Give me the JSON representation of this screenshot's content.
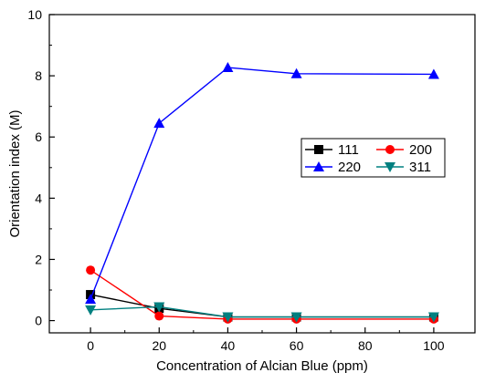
{
  "chart_data": {
    "type": "line",
    "title": "",
    "xlabel": "Concentration of Alcian Blue (ppm)",
    "ylabel": "Orientation index (M)",
    "xlim": [
      -12,
      112
    ],
    "ylim": [
      -0.4,
      10
    ],
    "xticks": [
      0,
      20,
      40,
      60,
      80,
      100
    ],
    "yticks": [
      0,
      2,
      4,
      6,
      8,
      10
    ],
    "grid": false,
    "legend_position": "center-right",
    "x": [
      0,
      20,
      40,
      60,
      100
    ],
    "series": [
      {
        "name": "111",
        "color": "#000000",
        "marker": "square",
        "values": [
          0.85,
          0.4,
          0.12,
          0.12,
          0.12
        ]
      },
      {
        "name": "200",
        "color": "#ff0000",
        "marker": "circle",
        "values": [
          1.65,
          0.15,
          0.05,
          0.05,
          0.05
        ]
      },
      {
        "name": "220",
        "color": "#0000ff",
        "marker": "triangle-up",
        "values": [
          0.7,
          6.45,
          8.27,
          8.07,
          8.05
        ]
      },
      {
        "name": "311",
        "color": "#008080",
        "marker": "triangle-down",
        "values": [
          0.35,
          0.45,
          0.12,
          0.12,
          0.12
        ]
      }
    ]
  }
}
